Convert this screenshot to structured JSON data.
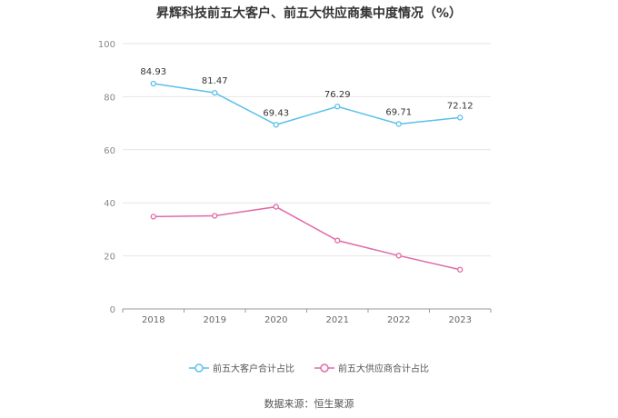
{
  "source_text": "数据来源：恒生聚源",
  "chart_data": {
    "type": "line",
    "title": "昇辉科技前五大客户、前五大供应商集中度情况（%）",
    "xlabel": "",
    "ylabel": "",
    "categories": [
      "2018",
      "2019",
      "2020",
      "2021",
      "2022",
      "2023"
    ],
    "ylim": [
      0,
      100
    ],
    "yticks": [
      0,
      20,
      40,
      60,
      80,
      100
    ],
    "grid": true,
    "legend_position": "bottom",
    "series": [
      {
        "name": "前五大客户合计占比",
        "color": "#5bc0eb",
        "values": [
          84.93,
          81.47,
          69.43,
          76.29,
          69.71,
          72.12
        ],
        "labels": [
          "84.93",
          "81.47",
          "69.43",
          "76.29",
          "69.71",
          "72.12"
        ],
        "show_labels": true
      },
      {
        "name": "前五大供应商合计占比",
        "color": "#e06aa8",
        "values": [
          34.8,
          35.1,
          38.5,
          25.8,
          20.1,
          14.8
        ],
        "show_labels": false
      }
    ]
  }
}
